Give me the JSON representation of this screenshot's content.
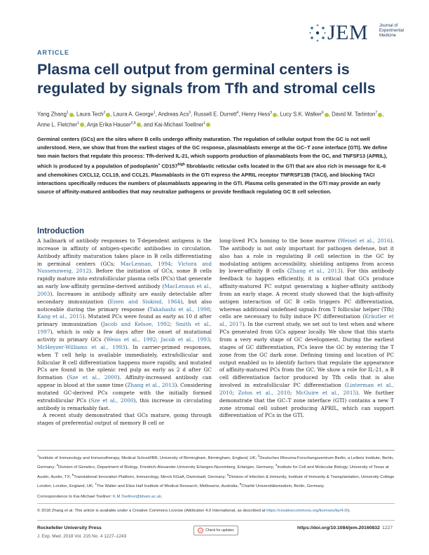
{
  "journal": {
    "logo_text": "JEM",
    "tagline": "Journal of Experimental Medicine"
  },
  "article_label": "ARTICLE",
  "title": "Plasma cell output from germinal centers is regulated by signals from Tfh and stromal cells",
  "authors": [
    {
      "name": "Yang Zhang",
      "aff": "1",
      "orcid": true
    },
    {
      "name": "Laura Tech",
      "aff": "2",
      "orcid": true
    },
    {
      "name": "Laura A. George",
      "aff": "1",
      "orcid": false
    },
    {
      "name": "Andreas Acs",
      "aff": "3",
      "orcid": false
    },
    {
      "name": "Russell E. Durrett",
      "aff": "4",
      "orcid": false
    },
    {
      "name": "Henry Hess",
      "aff": "5",
      "orcid": true
    },
    {
      "name": "Lucy S.K. Walker",
      "aff": "6",
      "orcid": true
    },
    {
      "name": "David M. Tarlinton",
      "aff": "7",
      "orcid": true
    },
    {
      "name": "Anne L. Fletcher",
      "aff": "1",
      "orcid": true
    },
    {
      "name": "Anja Erika Hauser",
      "aff": "2,8",
      "orcid": true
    },
    {
      "name": "Kai-Michael Toellner",
      "aff": "1",
      "orcid": true
    }
  ],
  "abstract": {
    "p1": "Germinal centers (GCs) are the sites where B cells undergo affinity maturation. The regulation of cellular output from the GC is not well understood. Here, we show that from the earliest stages of the GC response, plasmablasts emerge at the GC–T zone interface (GTI). We define two main factors that regulate this process: Tfh-derived IL-21, which supports production of plasmablasts from the GC, and TNFSF13 (APRIL), which is produced by a population of podoplanin",
    "sup1": "+",
    "p2": " CD157",
    "sup2": "high",
    "p3": " fibroblastic reticular cells located in the GTI that are also rich in message for IL-6 and chemokines CXCL12, CCL19, and CCL21. Plasmablasts in the GTI express the APRIL receptor TNFRSF13B (TACI), and blocking TACI interactions specifically reduces the numbers of plasmablasts appearing in the GTI. Plasma cells generated in the GTI may provide an early source of affinity-matured antibodies that may neutralize pathogens or provide feedback regulating GC B cell selection."
  },
  "intro": {
    "heading": "Introduction",
    "left_p1": [
      {
        "t": "A hallmark of antibody responses to T-dependent antigens is the increase in affinity of antigen-specific antibodies in circulation. Antibody affinity maturation takes place in B cells differentiating in germinal centers (GCs; "
      },
      {
        "t": "MacLennan, 1994",
        "link": true
      },
      {
        "t": "; "
      },
      {
        "t": "Victora and Nussenzweig, 2012",
        "link": true
      },
      {
        "t": "). Before the initiation of GCs, some B cells rapidly mature into extrafollicular plasma cells (PCs) that generate an early low-affinity germline-derived antibody ("
      },
      {
        "t": "MacLennan et al., 2003",
        "link": true
      },
      {
        "t": "). Increases in antibody affinity are easily detectable after secondary immunization ("
      },
      {
        "t": "Eisen and Siskind, 1964",
        "link": true
      },
      {
        "t": "), but also noticeable during the primary response ("
      },
      {
        "t": "Takahashi et al., 1998",
        "link": true
      },
      {
        "t": "; "
      },
      {
        "t": "Kang et al., 2015",
        "link": true
      },
      {
        "t": "). Mutated PCs were found as early as 10 d after primary immunization ("
      },
      {
        "t": "Jacob and Kelsoe, 1992",
        "link": true
      },
      {
        "t": "; "
      },
      {
        "t": "Smith et al., 1997",
        "link": true
      },
      {
        "t": "), which is only a few days after the onset of mutational activity in primary GCs ("
      },
      {
        "t": "Weiss et al., 1992",
        "link": true
      },
      {
        "t": "; "
      },
      {
        "t": "Jacob et al., 1993",
        "link": true
      },
      {
        "t": "; "
      },
      {
        "t": "McHeyzer-Williams et al., 1993",
        "link": true
      },
      {
        "t": "). In carrier-primed responses, when T cell help is available immediately, extrafollicular and follicular B cell differentiation happens more rapidly, and mutated PCs are found in the splenic red pulp as early as 2 d after GC formation ("
      },
      {
        "t": "Sze et al., 2000",
        "link": true
      },
      {
        "t": "). Affinity-increased antibody can appear in blood at the same time ("
      },
      {
        "t": "Zhang et al., 2013",
        "link": true
      },
      {
        "t": "). Considering mutated GC-derived PCs compete with the initially formed extrafollicular PCs ("
      },
      {
        "t": "Sze et al., 2000",
        "link": true
      },
      {
        "t": "), this increase in circulating antibody is remarkably fast."
      }
    ],
    "left_p2": "A recent study demonstrated that GCs mature, going through stages of preferential output of memory B cell or",
    "right_p1": [
      {
        "t": "long-lived PCs homing to the bone marrow ("
      },
      {
        "t": "Weisel et al., 2016",
        "link": true
      },
      {
        "t": "). The antibody is not only important for pathogen defense, but it also has a role in regulating B cell selection in the GC by modulating antigen accessibility, shielding antigens from access by lower-affinity B cells ("
      },
      {
        "t": "Zhang et al., 2013",
        "link": true
      },
      {
        "t": "). For this antibody feedback to happen efficiently, it is critical that GCs produce affinity-matured PC output generating a higher-affinity antibody from an early stage. A recent study showed that the high-affinity antigen interaction of GC B cells triggers PC differentiation, whereas additional undefined signals from T follicular helper (Tfh) cells are necessary to fully induce PC differentiation ("
      },
      {
        "t": "Kräutler et al., 2017",
        "link": true
      },
      {
        "t": "). In the current study, we set out to test when and where PCs generated from GCs appear locally. We show that this starts from a very early stage of GC development. During the earliest stages of GC differentiation, PCs leave the GC by entering the T zone from the GC dark zone. Defining timing and location of PC output enabled us to identify factors that regulate the appearance of affinity-matured PCs from the GC. We show a role for IL-21, a B cell differentiation factor produced by Tfh cells that is also involved in extrafollicular PC differentiation ("
      },
      {
        "t": "Linterman et al., 2010",
        "link": true
      },
      {
        "t": "; "
      },
      {
        "t": "Zotos et al., 2010",
        "link": true
      },
      {
        "t": "; "
      },
      {
        "t": "McGuire et al., 2015",
        "link": true
      },
      {
        "t": "). We further demonstrate that the GC–T zone interface (GTI) contains a new T zone stromal cell subset producing APRIL, which can support differentiation of PCs in the GTI."
      }
    ]
  },
  "affiliations": [
    {
      "n": "1",
      "t": "Institute of Immunology and Immunotherapy, Medical School/IBR, University of Birmingham, Birmingham, England, UK;"
    },
    {
      "n": "2",
      "t": "Deutsches Rheuma-Forschungszentrum Berlin, a Leibniz Institute, Berlin, Germany;"
    },
    {
      "n": "3",
      "t": "Division of Genetics, Department of Biology, Friedrich-Alexander-University Erlangen-Nuremberg, Erlangen, Germany;"
    },
    {
      "n": "4",
      "t": "Institute for Cell and Molecular Biology, University of Texas at Austin, Austin, TX;"
    },
    {
      "n": "5",
      "t": "Translational Innovation Platform, Immunology, Merck KGaA, Darmstadt, Germany;"
    },
    {
      "n": "6",
      "t": "Division of Infection & Immunity, Institute of Immunity & Transplantation, University College London, London, England, UK;"
    },
    {
      "n": "7",
      "t": "The Walter and Eliza Hall Institute of Medical Research, Melbourne, Australia;"
    },
    {
      "n": "8",
      "t": "Charité Universitätsmedizin, Berlin, Germany."
    }
  ],
  "correspondence": {
    "prefix": "Correspondence to Kai-Michael Toellner: ",
    "email": "K.M.Toellner@bham.ac.uk",
    "suffix": "."
  },
  "license": {
    "text": "© 2018 Zhang et al. This article is available under a Creative Commons License (Attribution 4.0 International, as described at ",
    "url": "https://creativecommons.org/licenses/by/4.0/",
    "end": ")."
  },
  "footer": {
    "publisher": "Rockefeller University Press",
    "citation": "J. Exp. Med. 2018 Vol. 215 No. 4   1227–1243",
    "check_updates": "Check for updates",
    "doi": "https://doi.org/10.1084/jem.20160832",
    "page": "1227"
  },
  "colors": {
    "title": "#1f3a5f",
    "link": "#2f6b9a",
    "orcid": "#a6ce39"
  },
  "icons": [
    "jem-logo-icon",
    "orcid-icon",
    "check-for-updates-icon"
  ]
}
